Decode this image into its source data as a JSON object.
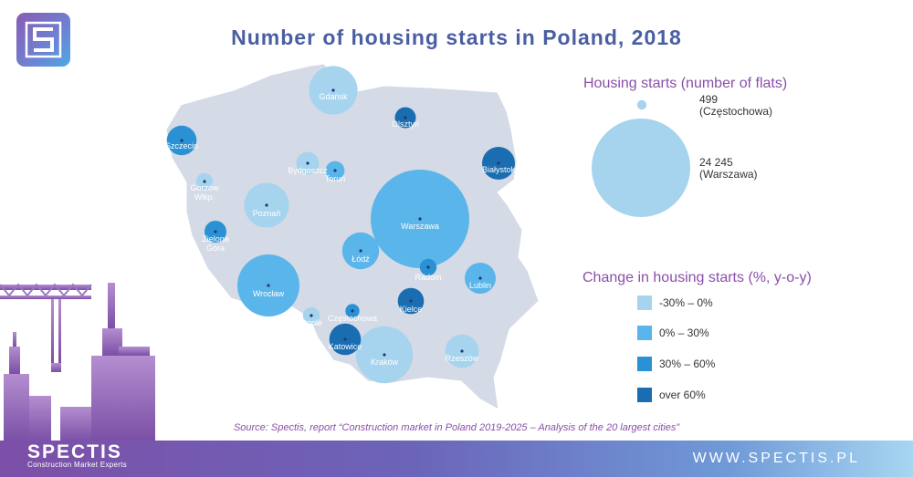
{
  "title": "Number of housing starts in Poland, 2018",
  "colors": {
    "map_fill": "#d4dae6",
    "change_-30_0": "#a6d4ee",
    "change_0_30": "#5ab5ea",
    "change_30_60": "#2a92d4",
    "change_over_60": "#1b6db2",
    "title": "#4a5ea2",
    "legend_heading": "#8a4fa9"
  },
  "cities": [
    {
      "name": "Gdańsk",
      "flats": 5900,
      "change": "-30% – 0%"
    },
    {
      "name": "Olsztyn",
      "flats": 1100,
      "change": "over 60%"
    },
    {
      "name": "Szczecin",
      "flats": 2200,
      "change": "30% – 60%"
    },
    {
      "name": "Białystok",
      "flats": 2700,
      "change": "over 60%"
    },
    {
      "name": "Bydgoszcz",
      "flats": 1300,
      "change": "-30% – 0%"
    },
    {
      "name": "Toruń",
      "flats": 900,
      "change": "0% – 30%"
    },
    {
      "name": "Gorzów Wlkp.",
      "flats": 700,
      "change": "-30% – 0%"
    },
    {
      "name": "Poznań",
      "flats": 5000,
      "change": "-30% – 0%"
    },
    {
      "name": "Warszawa",
      "flats": 24245,
      "change": "0% – 30%"
    },
    {
      "name": "Zielona Góra",
      "flats": 1200,
      "change": "30% – 60%"
    },
    {
      "name": "Łódź",
      "flats": 3400,
      "change": "0% – 30%"
    },
    {
      "name": "Radom",
      "flats": 700,
      "change": "30% – 60%"
    },
    {
      "name": "Lublin",
      "flats": 2400,
      "change": "0% – 30%"
    },
    {
      "name": "Wrocław",
      "flats": 9600,
      "change": "0% – 30%"
    },
    {
      "name": "Opole",
      "flats": 700,
      "change": "-30% – 0%"
    },
    {
      "name": "Częstochowa",
      "flats": 499,
      "change": "30% – 60%"
    },
    {
      "name": "Kielce",
      "flats": 1700,
      "change": "over 60%"
    },
    {
      "name": "Katowice",
      "flats": 2500,
      "change": "over 60%"
    },
    {
      "name": "Kraków",
      "flats": 8100,
      "change": "-30% – 0%"
    },
    {
      "name": "Rzeszów",
      "flats": 2800,
      "change": "-30% – 0%"
    }
  ],
  "legend_size": {
    "heading": "Housing starts (number of flats)",
    "small": {
      "value": 499,
      "value_label": "499",
      "city_label": "(Częstochowa)"
    },
    "large": {
      "value": 24245,
      "value_label": "24 245",
      "city_label": "(Warszawa)"
    }
  },
  "legend_change": {
    "heading": "Change in housing starts (%, y-o-y)",
    "items": [
      {
        "label": "-30% – 0%",
        "color": "#a6d4ee"
      },
      {
        "label": "0% – 30%",
        "color": "#5ab5ea"
      },
      {
        "label": "30% – 60%",
        "color": "#2a92d4"
      },
      {
        "label": "over 60%",
        "color": "#1b6db2"
      }
    ]
  },
  "source": "Source: Spectis, report “Construction market in Poland 2019-2025 – Analysis of the 20 largest cities”",
  "footer": {
    "brand": "SPECTIS",
    "tagline": "Construction Market Experts",
    "website": "WWW.SPECTIS.PL"
  },
  "icons": {
    "logo": "spectis-s-logo-icon",
    "skyline": "city-skyline-crane-icon"
  }
}
